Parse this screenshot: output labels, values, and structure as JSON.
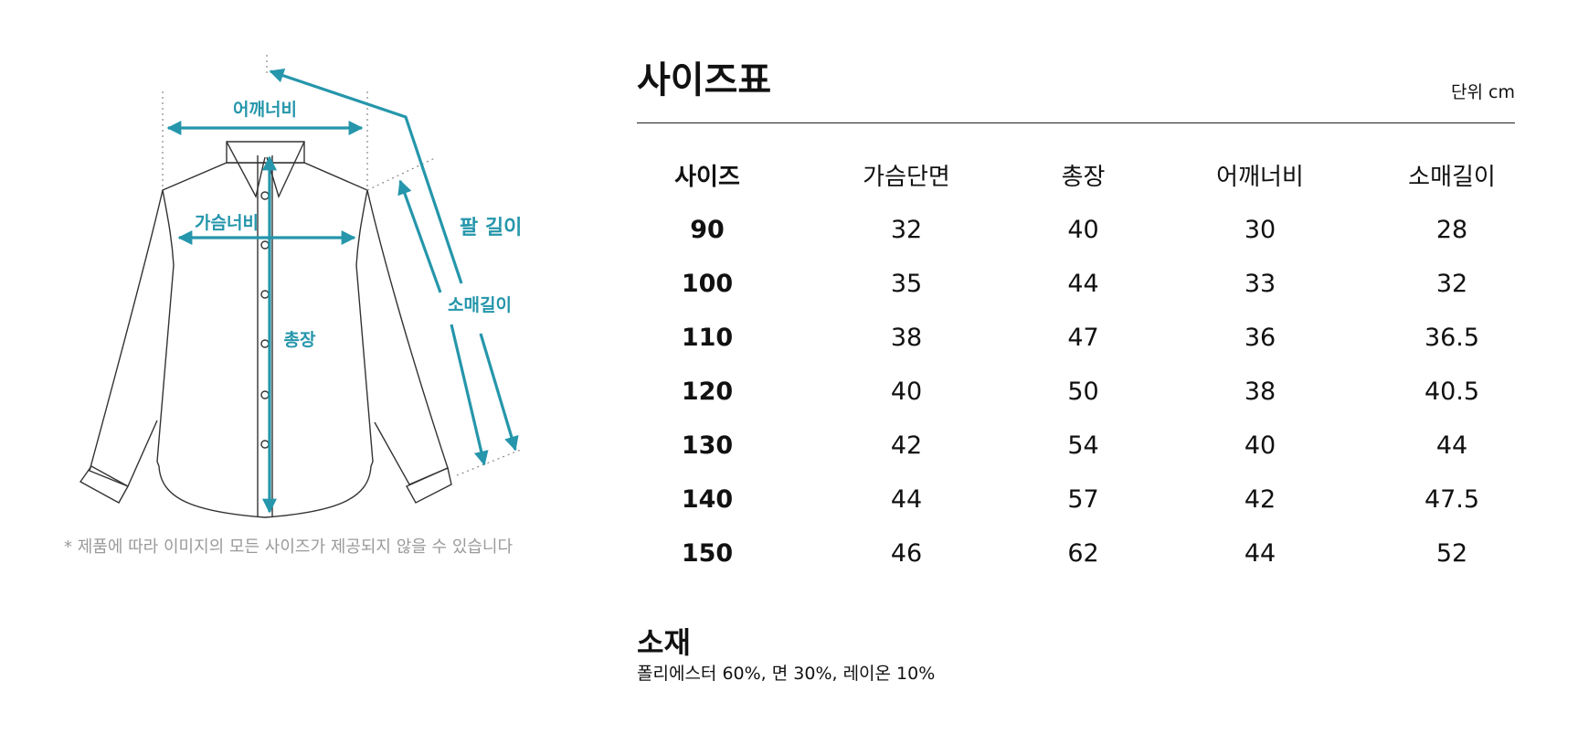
{
  "diagram": {
    "accent": "#2596ab",
    "labels": {
      "shoulder": "어깨너비",
      "chest": "가슴너비",
      "length": "총장",
      "sleeve": "소매길이",
      "arm": "팔 길이"
    }
  },
  "note": "* 제품에 따라 이미지의 모든 사이즈가 제공되지 않을 수 있습니다",
  "size_table": {
    "title": "사이즈표",
    "unit": "단위 cm",
    "headers": [
      "사이즈",
      "가슴단면",
      "총장",
      "어깨너비",
      "소매길이"
    ],
    "rows": [
      [
        "90",
        "32",
        "40",
        "30",
        "28"
      ],
      [
        "100",
        "35",
        "44",
        "33",
        "32"
      ],
      [
        "110",
        "38",
        "47",
        "36",
        "36.5"
      ],
      [
        "120",
        "40",
        "50",
        "38",
        "40.5"
      ],
      [
        "130",
        "42",
        "54",
        "40",
        "44"
      ],
      [
        "140",
        "44",
        "57",
        "42",
        "47.5"
      ],
      [
        "150",
        "46",
        "62",
        "44",
        "52"
      ]
    ]
  },
  "material": {
    "title": "소재",
    "text": "폴리에스터 60%, 면 30%, 레이온 10%"
  }
}
